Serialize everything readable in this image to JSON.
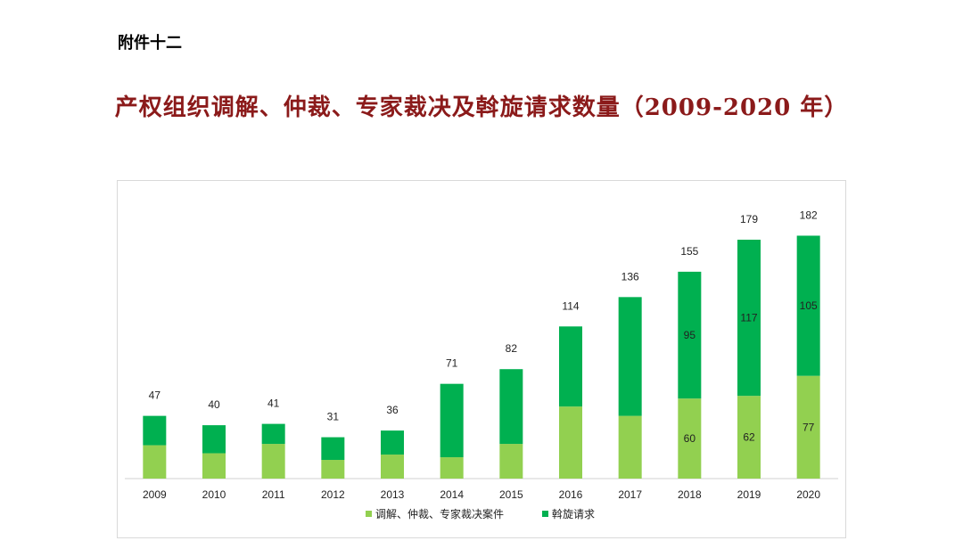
{
  "header": {
    "attachment": "附件十二",
    "title": "产权组织调解、仲裁、专家裁决及斡旋请求数量（2009-2020 年）"
  },
  "chart_data": {
    "type": "bar",
    "stacked": true,
    "categories": [
      "2009",
      "2010",
      "2011",
      "2012",
      "2013",
      "2014",
      "2015",
      "2016",
      "2017",
      "2018",
      "2019",
      "2020"
    ],
    "series": [
      {
        "name": "调解、仲裁、专家裁决案件",
        "color": "#92d050",
        "values": [
          25,
          19,
          26,
          14,
          18,
          16,
          26,
          54,
          47,
          60,
          62,
          77
        ],
        "labels": [
          "",
          "",
          "",
          "",
          "",
          "",
          "",
          "",
          "",
          "60",
          "62",
          "77"
        ]
      },
      {
        "name": "斡旋请求",
        "color": "#00b050",
        "values": [
          22,
          21,
          15,
          17,
          18,
          55,
          56,
          60,
          89,
          95,
          117,
          105
        ],
        "labels": [
          "",
          "",
          "",
          "",
          "",
          "",
          "",
          "",
          "",
          "95",
          "117",
          "105"
        ]
      }
    ],
    "totals": [
      "47",
      "40",
      "41",
      "31",
      "36",
      "71",
      "82",
      "114",
      "136",
      "155",
      "179",
      "182"
    ],
    "ylim": [
      0,
      200
    ],
    "grid": false,
    "legend_position": "bottom"
  }
}
